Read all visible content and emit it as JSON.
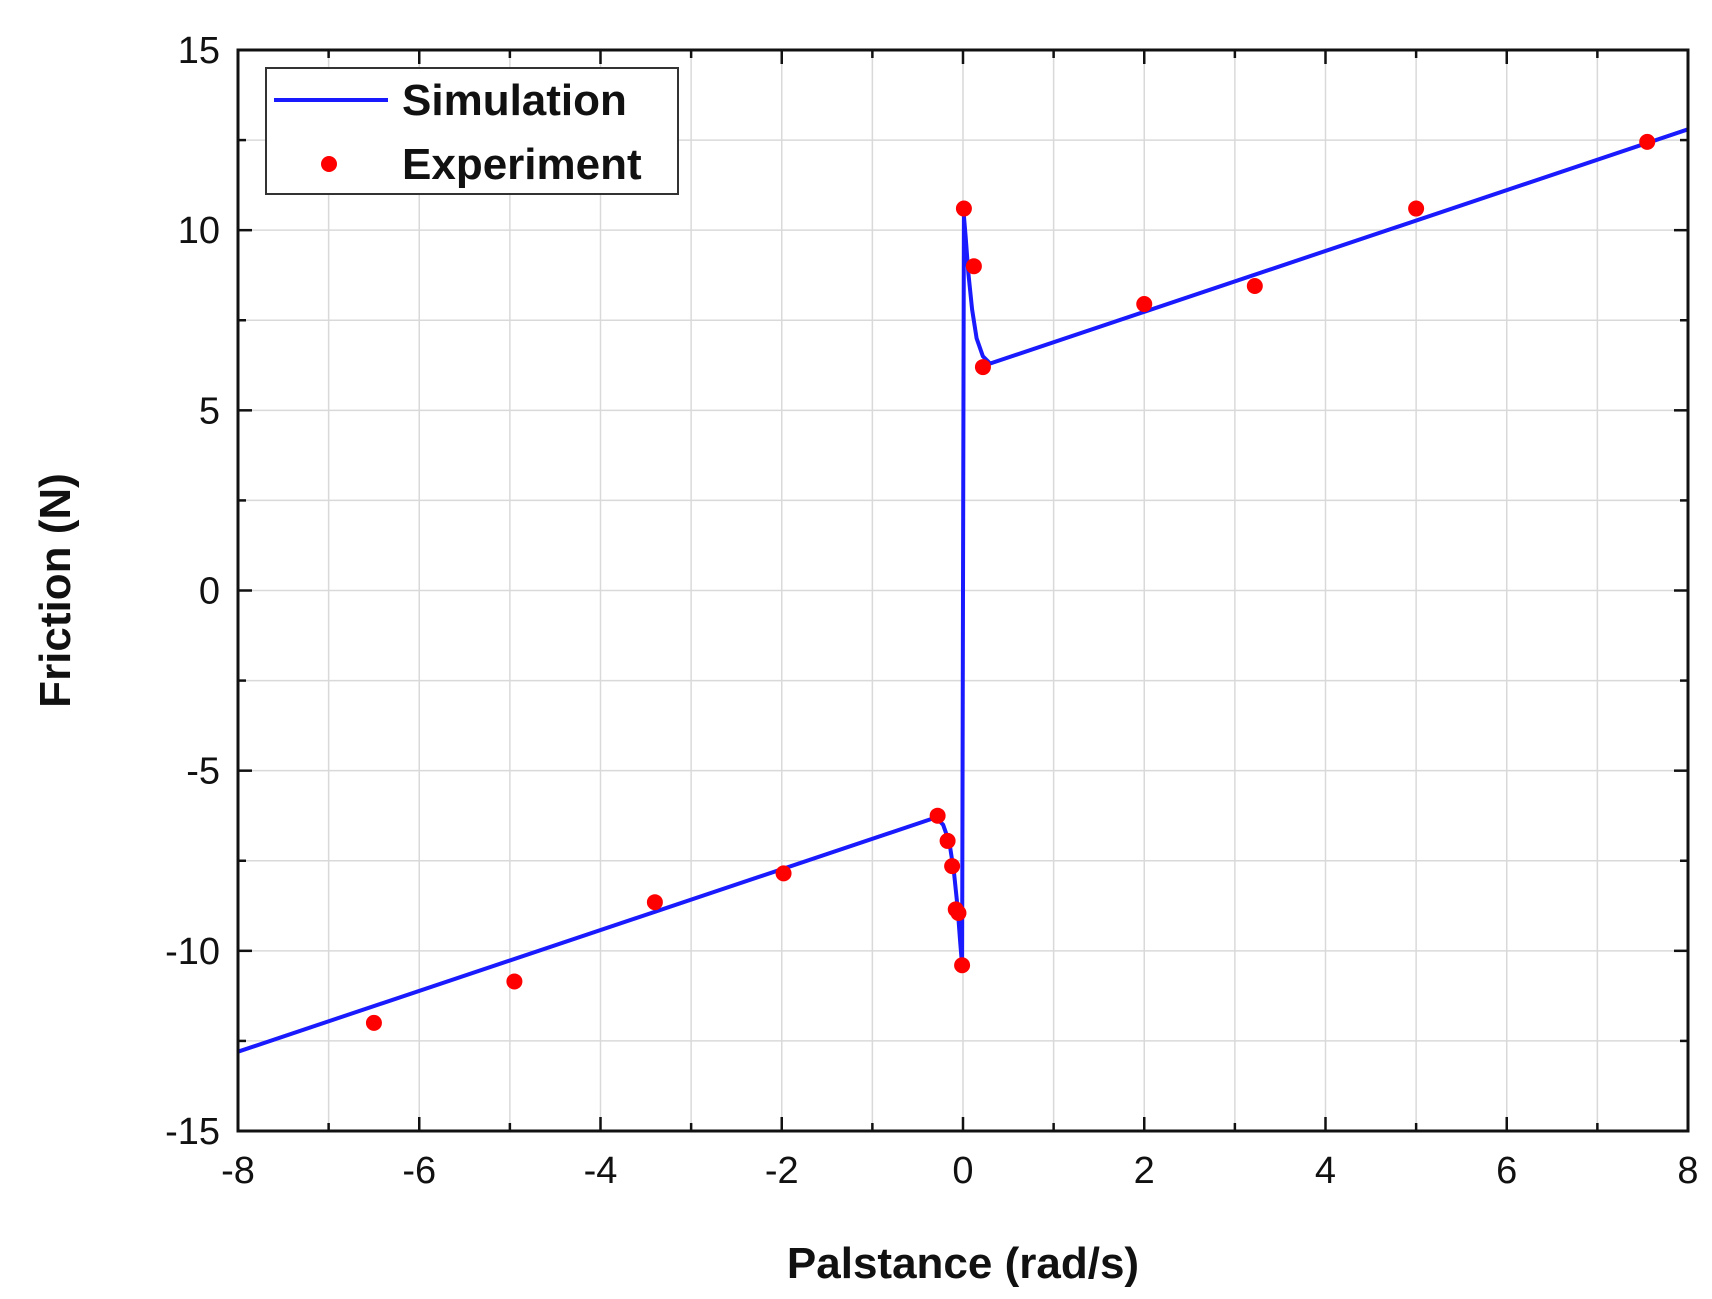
{
  "chart_data": {
    "type": "line",
    "title": "",
    "xlabel": "Palstance (rad/s)",
    "ylabel": "Friction (N)",
    "xlim": [
      -8,
      8
    ],
    "ylim": [
      -15,
      15
    ],
    "x_ticks": [
      -8,
      -6,
      -4,
      -2,
      0,
      2,
      4,
      6,
      8
    ],
    "y_ticks": [
      -15,
      -10,
      -5,
      0,
      5,
      10,
      15
    ],
    "grid": true,
    "legend_position": "top-left",
    "colors": {
      "simulation": "#1a1aff",
      "experiment": "#ff0000",
      "grid": "#d9d9d9",
      "axis": "#111111"
    },
    "series": [
      {
        "name": "Simulation",
        "kind": "line",
        "x": [
          -8,
          -0.3,
          -0.22,
          -0.15,
          -0.1,
          -0.06,
          -0.03,
          -0.01,
          0,
          0.01,
          0.03,
          0.06,
          0.1,
          0.15,
          0.22,
          0.3,
          8
        ],
        "y": [
          -12.8,
          -6.3,
          -6.5,
          -7.0,
          -7.8,
          -8.8,
          -9.8,
          -10.4,
          0,
          10.4,
          9.8,
          8.8,
          7.8,
          7.0,
          6.5,
          6.3,
          12.8
        ]
      },
      {
        "name": "Experiment",
        "kind": "scatter",
        "x": [
          -6.5,
          -4.95,
          -3.4,
          -1.98,
          -0.28,
          -0.17,
          -0.12,
          -0.08,
          -0.05,
          -0.01,
          0.01,
          0.12,
          0.22,
          2.0,
          3.22,
          5.0,
          7.55
        ],
        "y": [
          -12.0,
          -10.85,
          -8.65,
          -7.85,
          -6.25,
          -6.95,
          -7.65,
          -8.85,
          -8.95,
          -10.4,
          10.6,
          9.0,
          6.2,
          7.95,
          8.45,
          10.6,
          12.45
        ]
      }
    ]
  }
}
